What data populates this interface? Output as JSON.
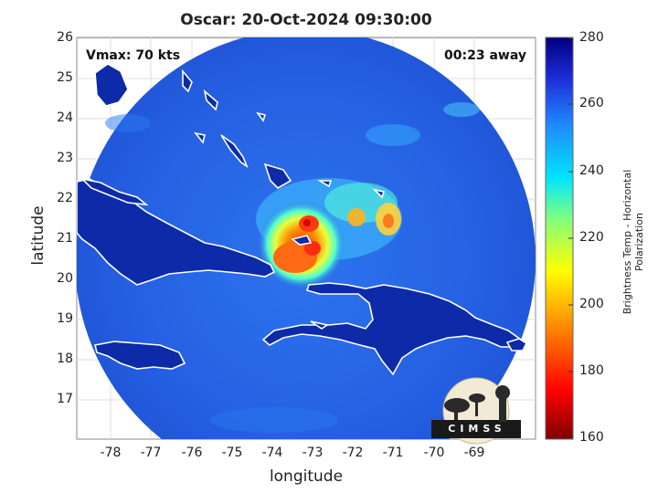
{
  "title": "Oscar: 20-Oct-2024 09:30:00",
  "annotations": {
    "vmax": "Vmax: 70 kts",
    "away": "00:23 away"
  },
  "axes": {
    "xlabel": "longitude",
    "ylabel": "latitude",
    "xticks": [
      "-78",
      "-77",
      "-76",
      "-75",
      "-74",
      "-73",
      "-72",
      "-71",
      "-70",
      "-69"
    ],
    "yticks": [
      "26",
      "25",
      "24",
      "23",
      "22",
      "21",
      "20",
      "19",
      "18",
      "17"
    ],
    "xlim": [
      -78.8,
      -67.2
    ],
    "ylim": [
      16.0,
      26.1
    ]
  },
  "colorbar": {
    "label": "Brightness Temp - Horizontal Polarization",
    "ticks": [
      "280",
      "260",
      "240",
      "220",
      "200",
      "180",
      "160"
    ],
    "range": [
      160,
      280
    ],
    "colormap": "jet"
  },
  "logo": {
    "text": "CIMSS"
  },
  "colors": {
    "ocean_cold": "#1a4fd6",
    "background_swath": "#2a66e6",
    "land": "#0d2aa8",
    "coastline": "#ffffff",
    "eye_warm": "#ff3a1a"
  }
}
